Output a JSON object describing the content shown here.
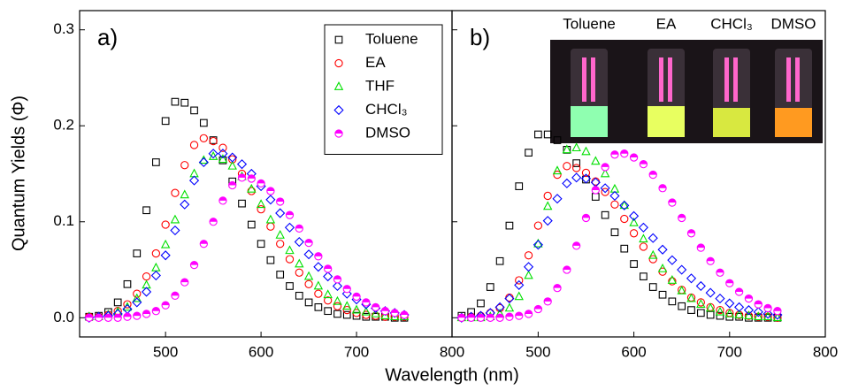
{
  "xlabel": "Wavelength (nm)",
  "ylabel": "Quantum Yields (Φ)",
  "chart_data": [
    {
      "type": "scatter",
      "annotation": "a)",
      "legend": "upper right",
      "xlim": [
        410,
        800
      ],
      "xticks": [
        500,
        600,
        700,
        800
      ],
      "ylim": [
        -0.02,
        0.32
      ],
      "yticks": [
        {
          "value": 0,
          "label": "0.0"
        },
        0.1,
        0.2,
        0.3
      ],
      "x": [
        420,
        430,
        440,
        450,
        460,
        470,
        480,
        490,
        500,
        510,
        520,
        530,
        540,
        550,
        560,
        570,
        580,
        590,
        600,
        610,
        620,
        630,
        640,
        650,
        660,
        670,
        680,
        690,
        700,
        710,
        720,
        730,
        740,
        750
      ],
      "series": [
        {
          "name": "Toluene",
          "color": "#000000",
          "marker": "square",
          "values": [
            0.001,
            0.002,
            0.006,
            0.016,
            0.035,
            0.067,
            0.112,
            0.162,
            0.205,
            0.225,
            0.224,
            0.216,
            0.203,
            0.185,
            0.164,
            0.142,
            0.119,
            0.097,
            0.077,
            0.06,
            0.045,
            0.033,
            0.023,
            0.016,
            0.011,
            0.007,
            0.004,
            0.003,
            0.002,
            0.001,
            0.001,
            0.001,
            0,
            0
          ]
        },
        {
          "name": "EA",
          "color": "#ff0000",
          "marker": "circle",
          "values": [
            0.001,
            0.001,
            0.003,
            0.007,
            0.014,
            0.025,
            0.043,
            0.067,
            0.097,
            0.13,
            0.159,
            0.18,
            0.187,
            0.184,
            0.177,
            0.165,
            0.15,
            0.132,
            0.113,
            0.095,
            0.077,
            0.061,
            0.047,
            0.035,
            0.025,
            0.018,
            0.012,
            0.008,
            0.005,
            0.003,
            0.002,
            0.001,
            0.001,
            0.001
          ]
        },
        {
          "name": "THF",
          "color": "#00e000",
          "marker": "triangle",
          "values": [
            0.001,
            0.001,
            0.003,
            0.006,
            0.011,
            0.02,
            0.034,
            0.052,
            0.076,
            0.102,
            0.128,
            0.15,
            0.164,
            0.168,
            0.165,
            0.158,
            0.147,
            0.134,
            0.118,
            0.102,
            0.086,
            0.07,
            0.056,
            0.043,
            0.033,
            0.024,
            0.017,
            0.012,
            0.008,
            0.006,
            0.004,
            0.002,
            0.001,
            0.001
          ]
        },
        {
          "name": "CHCl₃",
          "color": "#0000ff",
          "marker": "diamond",
          "values": [
            0,
            0.001,
            0.002,
            0.004,
            0.009,
            0.016,
            0.027,
            0.044,
            0.065,
            0.091,
            0.118,
            0.143,
            0.162,
            0.171,
            0.171,
            0.167,
            0.16,
            0.15,
            0.137,
            0.123,
            0.109,
            0.094,
            0.079,
            0.066,
            0.053,
            0.043,
            0.033,
            0.025,
            0.019,
            0.014,
            0.01,
            0.007,
            0.005,
            0.003
          ]
        },
        {
          "name": "DMSO",
          "color": "#ff00ff",
          "marker": "half-circle",
          "values": [
            0,
            0,
            0,
            0,
            0.001,
            0.002,
            0.004,
            0.007,
            0.013,
            0.023,
            0.037,
            0.055,
            0.077,
            0.1,
            0.122,
            0.138,
            0.146,
            0.145,
            0.14,
            0.132,
            0.121,
            0.107,
            0.093,
            0.078,
            0.064,
            0.051,
            0.04,
            0.03,
            0.022,
            0.016,
            0.011,
            0.007,
            0.005,
            0.003
          ]
        }
      ]
    },
    {
      "type": "scatter",
      "annotation": "b)",
      "inset_labels": [
        "Toluene",
        "EA",
        "CHCl₃",
        "DMSO"
      ],
      "xlim": [
        410,
        800
      ],
      "xticks": [
        500,
        600,
        700,
        800
      ],
      "ylim": [
        -0.02,
        0.32
      ],
      "yticks": [
        0,
        0.1,
        0.2,
        0.3
      ],
      "x": [
        420,
        430,
        440,
        450,
        460,
        470,
        480,
        490,
        500,
        510,
        520,
        530,
        540,
        550,
        560,
        570,
        580,
        590,
        600,
        610,
        620,
        630,
        640,
        650,
        660,
        670,
        680,
        690,
        700,
        710,
        720,
        730,
        740,
        750
      ],
      "series": [
        {
          "color": "#000000",
          "marker": "square",
          "values": [
            0.002,
            0.006,
            0.015,
            0.032,
            0.059,
            0.096,
            0.137,
            0.172,
            0.191,
            0.191,
            0.185,
            0.175,
            0.161,
            0.144,
            0.126,
            0.107,
            0.089,
            0.072,
            0.056,
            0.043,
            0.032,
            0.024,
            0.017,
            0.012,
            0.008,
            0.005,
            0.003,
            0.002,
            0.001,
            0.001,
            0,
            0,
            0,
            0
          ]
        },
        {
          "color": "#ff0000",
          "marker": "circle",
          "values": [
            0,
            0.001,
            0.002,
            0.005,
            0.01,
            0.021,
            0.039,
            0.065,
            0.096,
            0.127,
            0.149,
            0.158,
            0.156,
            0.151,
            0.142,
            0.131,
            0.118,
            0.103,
            0.088,
            0.074,
            0.061,
            0.048,
            0.038,
            0.029,
            0.021,
            0.016,
            0.011,
            0.008,
            0.005,
            0.003,
            0.002,
            0.001,
            0.001,
            0
          ]
        },
        {
          "color": "#00e000",
          "marker": "triangle",
          "values": [
            0,
            0,
            0,
            0.001,
            0.004,
            0.01,
            0.022,
            0.044,
            0.077,
            0.116,
            0.153,
            0.175,
            0.177,
            0.173,
            0.163,
            0.15,
            0.134,
            0.117,
            0.099,
            0.082,
            0.065,
            0.051,
            0.039,
            0.028,
            0.02,
            0.014,
            0.01,
            0.006,
            0.004,
            0.003,
            0.002,
            0.001,
            0.001,
            0
          ]
        },
        {
          "color": "#0000ff",
          "marker": "diamond",
          "values": [
            0,
            0.001,
            0.002,
            0.005,
            0.011,
            0.02,
            0.034,
            0.053,
            0.076,
            0.101,
            0.124,
            0.14,
            0.146,
            0.145,
            0.141,
            0.135,
            0.127,
            0.117,
            0.106,
            0.094,
            0.083,
            0.071,
            0.06,
            0.05,
            0.041,
            0.033,
            0.026,
            0.02,
            0.015,
            0.011,
            0.008,
            0.006,
            0.004,
            0.003
          ]
        },
        {
          "color": "#ff00ff",
          "marker": "half-circle",
          "values": [
            0,
            0,
            0,
            0,
            0,
            0.001,
            0.002,
            0.004,
            0.009,
            0.017,
            0.031,
            0.05,
            0.075,
            0.104,
            0.133,
            0.157,
            0.17,
            0.171,
            0.167,
            0.16,
            0.149,
            0.135,
            0.12,
            0.104,
            0.088,
            0.073,
            0.059,
            0.047,
            0.036,
            0.027,
            0.02,
            0.014,
            0.01,
            0.007
          ]
        }
      ]
    }
  ]
}
